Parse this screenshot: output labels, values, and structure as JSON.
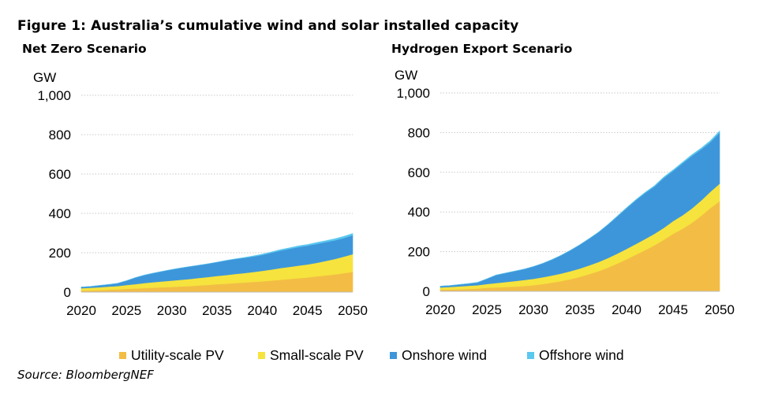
{
  "figure": {
    "title": "Figure 1: Australia’s cumulative wind and solar installed capacity",
    "source": "Source: BloombergNEF"
  },
  "colors": {
    "utility_pv": "#F3BD45",
    "small_pv": "#F6E33D",
    "onshore_wind": "#3E96DA",
    "offshore_wind": "#5BC8EF",
    "grid": "#c8c8c8"
  },
  "legend": [
    {
      "label": "Utility-scale PV",
      "color": "#F3BD45"
    },
    {
      "label": "Small-scale PV",
      "color": "#F6E33D"
    },
    {
      "label": "Onshore wind",
      "color": "#3E96DA"
    },
    {
      "label": "Offshore wind",
      "color": "#5BC8EF"
    }
  ],
  "chart_data": [
    {
      "type": "area",
      "stacked": true,
      "title": "Net Zero Scenario",
      "ylabel": "GW",
      "xlabel": "",
      "ylim": [
        0,
        1000
      ],
      "yticks": [
        0,
        200,
        400,
        600,
        800,
        1000
      ],
      "ytick_labels": [
        "0",
        "200",
        "400",
        "600",
        "800",
        "1,000"
      ],
      "xticks": [
        "2020",
        "2025",
        "2030",
        "2035",
        "2040",
        "2045",
        "2050"
      ],
      "grid": true,
      "x": [
        2020,
        2021,
        2022,
        2023,
        2024,
        2025,
        2026,
        2027,
        2028,
        2029,
        2030,
        2031,
        2032,
        2033,
        2034,
        2035,
        2036,
        2037,
        2038,
        2039,
        2040,
        2041,
        2042,
        2043,
        2044,
        2045,
        2046,
        2047,
        2048,
        2049,
        2050
      ],
      "series": [
        {
          "name": "Utility-scale PV",
          "values": [
            8,
            9,
            10,
            12,
            14,
            17,
            19,
            21,
            23,
            25,
            27,
            29,
            31,
            34,
            37,
            40,
            43,
            46,
            49,
            52,
            55,
            59,
            63,
            67,
            71,
            75,
            80,
            85,
            90,
            96,
            103
          ]
        },
        {
          "name": "Small-scale PV",
          "values": [
            12,
            13,
            15,
            16,
            17,
            19,
            22,
            25,
            28,
            30,
            32,
            34,
            36,
            38,
            40,
            42,
            44,
            46,
            48,
            50,
            53,
            56,
            59,
            61,
            64,
            66,
            69,
            73,
            78,
            84,
            90
          ]
        },
        {
          "name": "Onshore wind",
          "values": [
            6,
            7,
            9,
            11,
            14,
            22,
            33,
            41,
            46,
            51,
            56,
            60,
            63,
            65,
            67,
            70,
            74,
            76,
            77,
            79,
            81,
            85,
            89,
            92,
            94,
            95,
            96,
            96,
            95,
            95,
            96
          ]
        },
        {
          "name": "Offshore wind",
          "values": [
            0,
            0,
            0,
            0,
            0,
            0,
            0,
            0,
            0,
            0,
            0,
            0,
            0,
            0,
            0,
            0,
            0,
            1,
            2,
            3,
            4,
            4,
            5,
            5,
            6,
            6,
            7,
            7,
            8,
            8,
            9
          ]
        }
      ]
    },
    {
      "type": "area",
      "stacked": true,
      "title": "Hydrogen Export Scenario",
      "ylabel": "GW",
      "xlabel": "",
      "ylim": [
        0,
        1000
      ],
      "yticks": [
        0,
        200,
        400,
        600,
        800,
        1000
      ],
      "ytick_labels": [
        "0",
        "200",
        "400",
        "600",
        "800",
        "1,000"
      ],
      "xticks": [
        "2020",
        "2025",
        "2030",
        "2035",
        "2040",
        "2045",
        "2050"
      ],
      "grid": true,
      "x": [
        2020,
        2021,
        2022,
        2023,
        2024,
        2025,
        2026,
        2027,
        2028,
        2029,
        2030,
        2031,
        2032,
        2033,
        2034,
        2035,
        2036,
        2037,
        2038,
        2039,
        2040,
        2041,
        2042,
        2043,
        2044,
        2045,
        2046,
        2047,
        2048,
        2049,
        2050
      ],
      "series": [
        {
          "name": "Utility-scale PV",
          "values": [
            8,
            9,
            10,
            12,
            14,
            18,
            20,
            22,
            24,
            27,
            31,
            37,
            44,
            52,
            62,
            73,
            87,
            102,
            120,
            140,
            162,
            185,
            208,
            232,
            260,
            290,
            315,
            345,
            380,
            420,
            455
          ]
        },
        {
          "name": "Small-scale PV",
          "values": [
            12,
            13,
            15,
            16,
            17,
            19,
            22,
            25,
            28,
            30,
            32,
            34,
            36,
            38,
            40,
            42,
            44,
            46,
            48,
            50,
            52,
            54,
            56,
            58,
            60,
            64,
            68,
            72,
            77,
            82,
            88
          ]
        },
        {
          "name": "Onshore wind",
          "values": [
            6,
            7,
            9,
            11,
            14,
            26,
            40,
            45,
            50,
            55,
            62,
            70,
            80,
            92,
            105,
            120,
            135,
            150,
            168,
            187,
            205,
            220,
            232,
            238,
            252,
            253,
            262,
            265,
            258,
            250,
            257
          ]
        },
        {
          "name": "Offshore wind",
          "values": [
            0,
            0,
            0,
            0,
            0,
            0,
            0,
            0,
            0,
            0,
            0,
            0,
            0,
            0,
            0,
            0,
            0,
            1,
            1,
            2,
            2,
            3,
            3,
            4,
            4,
            5,
            5,
            6,
            6,
            7,
            8
          ]
        }
      ]
    }
  ]
}
